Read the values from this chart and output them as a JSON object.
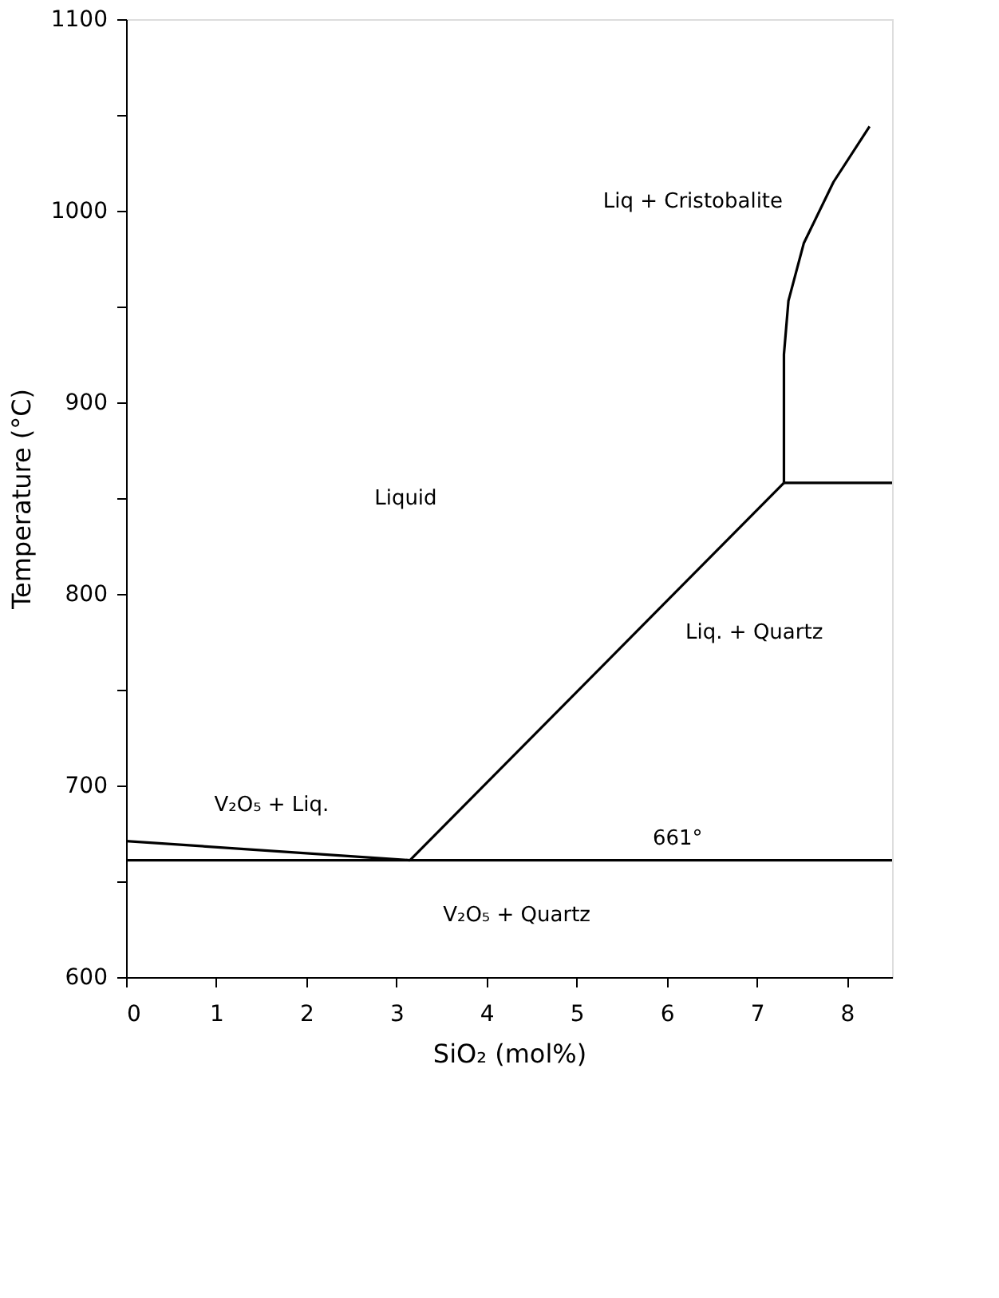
{
  "chart_data": {
    "type": "line",
    "xlabel": "SiO₂  (mol%)",
    "ylabel": "Temperature (°C)",
    "xlim": [
      0,
      8.5
    ],
    "ylim": [
      600,
      1100
    ],
    "xticks": [
      0,
      1,
      2,
      3,
      4,
      5,
      6,
      7,
      8
    ],
    "yticks": [
      600,
      {
        "value": 650,
        "label": null
      },
      700,
      {
        "value": 750,
        "label": null
      },
      800,
      {
        "value": 850,
        "label": null
      },
      900,
      {
        "value": 950,
        "label": null
      },
      1000,
      {
        "value": 1050,
        "label": null
      },
      1100
    ],
    "grid": false,
    "marker": "none",
    "line_style": "solid",
    "series": [
      {
        "color": "#000000",
        "x": [
          0,
          3.15
        ],
        "values": [
          671,
          661
        ]
      },
      {
        "color": "#000000",
        "x": [
          0,
          8.5
        ],
        "values": [
          661,
          661
        ]
      },
      {
        "color": "#000000",
        "x": [
          3.15,
          7.3
        ],
        "values": [
          661,
          858
        ]
      },
      {
        "color": "#000000",
        "x": [
          7.3,
          8.5
        ],
        "values": [
          858,
          858
        ]
      },
      {
        "color": "#000000",
        "x": [
          7.3,
          7.3,
          7.35,
          7.52,
          7.85,
          8.25
        ],
        "values": [
          858,
          925,
          953,
          983,
          1015,
          1044
        ]
      }
    ],
    "annotations": [
      "Liquid",
      "Liq. + Quartz",
      "Liq + Cristobalite",
      "661°",
      "V₂O₅ + Quartz",
      "V₂O₅ + Liq."
    ]
  }
}
